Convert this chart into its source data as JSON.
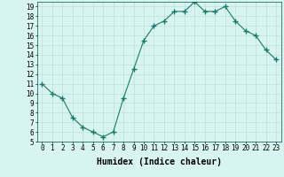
{
  "x": [
    0,
    1,
    2,
    3,
    4,
    5,
    6,
    7,
    8,
    9,
    10,
    11,
    12,
    13,
    14,
    15,
    16,
    17,
    18,
    19,
    20,
    21,
    22,
    23
  ],
  "y": [
    11.0,
    10.0,
    9.5,
    7.5,
    6.5,
    6.0,
    5.5,
    6.0,
    9.5,
    12.5,
    15.5,
    17.0,
    17.5,
    18.5,
    18.5,
    19.5,
    18.5,
    18.5,
    19.0,
    17.5,
    16.5,
    16.0,
    14.5,
    13.5
  ],
  "ylim": [
    5,
    19.5
  ],
  "xlim": [
    -0.5,
    23.5
  ],
  "yticks": [
    5,
    6,
    7,
    8,
    9,
    10,
    11,
    12,
    13,
    14,
    15,
    16,
    17,
    18,
    19
  ],
  "xticks": [
    0,
    1,
    2,
    3,
    4,
    5,
    6,
    7,
    8,
    9,
    10,
    11,
    12,
    13,
    14,
    15,
    16,
    17,
    18,
    19,
    20,
    21,
    22,
    23
  ],
  "xlabel": "Humidex (Indice chaleur)",
  "line_color": "#1a7a6a",
  "marker": "+",
  "marker_size": 4,
  "background_color": "#d8f4f0",
  "grid_color": "#c0deda",
  "tick_label_fontsize": 5.5,
  "xlabel_fontsize": 7
}
